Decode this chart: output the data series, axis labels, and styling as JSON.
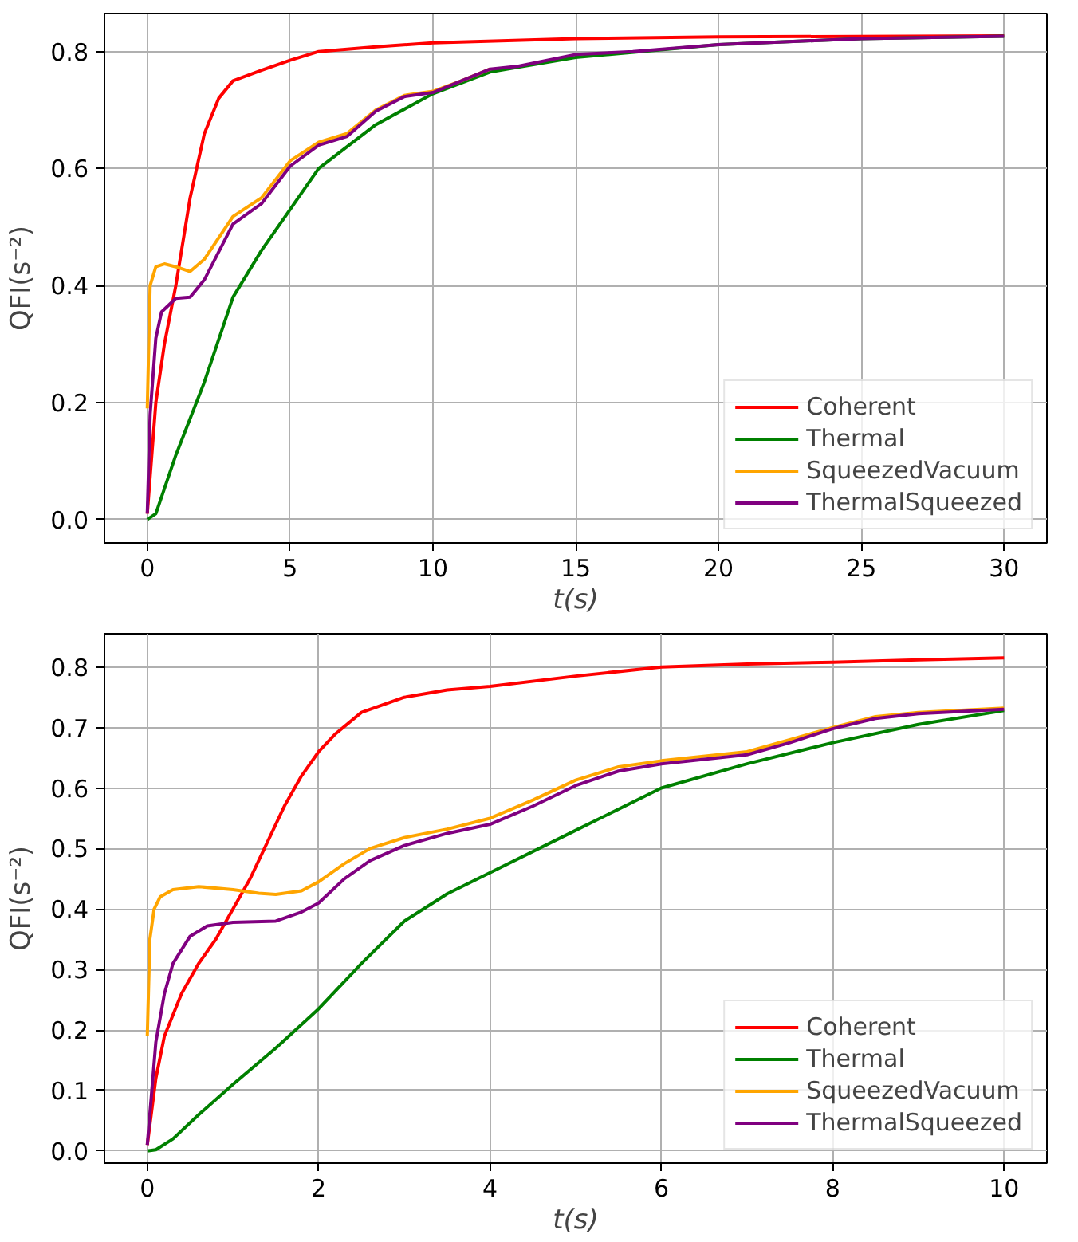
{
  "chart_data": [
    {
      "type": "line",
      "xlabel": "t(s)",
      "ylabel": "QFI(s⁻²)",
      "xlim": [
        -1.5,
        31.5
      ],
      "ylim": [
        -0.04,
        0.865
      ],
      "xticks": [
        0,
        5,
        10,
        15,
        20,
        25,
        30
      ],
      "yticks": [
        {
          "value": 0,
          "label": "0.0"
        },
        {
          "value": 0.2,
          "label": "0.2"
        },
        {
          "value": 0.4,
          "label": "0.4"
        },
        {
          "value": 0.6,
          "label": "0.6"
        },
        {
          "value": 0.8,
          "label": "0.8"
        }
      ],
      "grid": true,
      "legend": "bottom right",
      "line_style": "solid",
      "series": [
        {
          "name": "Coherent",
          "color": "#ff0000",
          "x": [
            0,
            0.3,
            0.6,
            1,
            1.5,
            2,
            2.5,
            3,
            4,
            5,
            6,
            8,
            10,
            15,
            20,
            30
          ],
          "values": [
            0.01,
            0.2,
            0.3,
            0.4,
            0.55,
            0.66,
            0.72,
            0.75,
            0.768,
            0.785,
            0.8,
            0.808,
            0.815,
            0.822,
            0.825,
            0.827
          ]
        },
        {
          "name": "Thermal",
          "color": "#008000",
          "x": [
            0,
            0.3,
            1,
            2,
            3,
            4,
            5,
            6,
            8,
            10,
            12,
            15,
            20,
            25,
            30
          ],
          "values": [
            0,
            0.01,
            0.11,
            0.235,
            0.38,
            0.46,
            0.53,
            0.6,
            0.675,
            0.728,
            0.765,
            0.79,
            0.812,
            0.822,
            0.826
          ]
        },
        {
          "name": "SqueezedVacuum",
          "color": "#ffa500",
          "x": [
            0,
            0.1,
            0.3,
            0.6,
            1,
            1.5,
            2,
            3,
            4,
            5,
            6,
            7,
            8,
            9,
            10,
            11,
            12
          ],
          "values": [
            0.19,
            0.4,
            0.432,
            0.437,
            0.432,
            0.424,
            0.445,
            0.518,
            0.55,
            0.613,
            0.645,
            0.66,
            0.7,
            0.725,
            0.732,
            0.75,
            0.77
          ]
        },
        {
          "name": "ThermalSqueezed",
          "color": "#800080",
          "x": [
            0,
            0.1,
            0.3,
            0.5,
            1,
            1.5,
            2,
            3,
            4,
            5,
            6,
            7,
            8,
            9,
            10,
            11,
            12,
            13,
            15,
            17,
            20,
            25,
            30
          ],
          "values": [
            0.01,
            0.18,
            0.31,
            0.355,
            0.378,
            0.38,
            0.41,
            0.505,
            0.54,
            0.604,
            0.64,
            0.655,
            0.698,
            0.723,
            0.73,
            0.75,
            0.77,
            0.775,
            0.795,
            0.8,
            0.812,
            0.822,
            0.826
          ]
        }
      ]
    },
    {
      "type": "line",
      "xlabel": "t(s)",
      "ylabel": "QFI(s⁻²)",
      "xlim": [
        -0.5,
        10.5
      ],
      "ylim": [
        -0.02,
        0.855
      ],
      "xticks": [
        0,
        2,
        4,
        6,
        8,
        10
      ],
      "yticks": [
        {
          "value": 0,
          "label": "0.0"
        },
        0.1,
        0.2,
        0.3,
        0.4,
        0.5,
        0.6,
        0.7,
        0.8
      ],
      "grid": true,
      "legend": "bottom right",
      "line_style": "solid",
      "series": [
        {
          "name": "Coherent",
          "color": "#ff0000",
          "x": [
            0,
            0.1,
            0.2,
            0.4,
            0.6,
            0.8,
            1,
            1.2,
            1.4,
            1.6,
            1.8,
            2,
            2.2,
            2.5,
            3,
            3.5,
            4,
            5,
            6,
            7,
            8,
            9,
            10
          ],
          "values": [
            0.01,
            0.12,
            0.19,
            0.26,
            0.31,
            0.35,
            0.4,
            0.45,
            0.51,
            0.57,
            0.62,
            0.66,
            0.69,
            0.725,
            0.75,
            0.762,
            0.768,
            0.785,
            0.8,
            0.805,
            0.808,
            0.812,
            0.815
          ]
        },
        {
          "name": "Thermal",
          "color": "#008000",
          "x": [
            0,
            0.1,
            0.3,
            0.6,
            1,
            1.5,
            2,
            2.5,
            3,
            3.5,
            4,
            5,
            6,
            7,
            8,
            9,
            10
          ],
          "values": [
            0,
            0.002,
            0.02,
            0.06,
            0.11,
            0.17,
            0.235,
            0.31,
            0.38,
            0.425,
            0.46,
            0.53,
            0.6,
            0.64,
            0.675,
            0.705,
            0.728
          ]
        },
        {
          "name": "SqueezedVacuum",
          "color": "#ffa500",
          "x": [
            0,
            0.03,
            0.08,
            0.15,
            0.3,
            0.6,
            1,
            1.3,
            1.5,
            1.8,
            2,
            2.3,
            2.6,
            3,
            3.5,
            4,
            4.5,
            5,
            5.5,
            6,
            7,
            7.5,
            8,
            8.5,
            9,
            10
          ],
          "values": [
            0.19,
            0.35,
            0.4,
            0.42,
            0.432,
            0.437,
            0.432,
            0.426,
            0.424,
            0.43,
            0.445,
            0.475,
            0.5,
            0.518,
            0.532,
            0.55,
            0.58,
            0.613,
            0.635,
            0.645,
            0.66,
            0.68,
            0.7,
            0.718,
            0.725,
            0.732
          ]
        },
        {
          "name": "ThermalSqueezed",
          "color": "#800080",
          "x": [
            0,
            0.1,
            0.2,
            0.3,
            0.5,
            0.7,
            1,
            1.5,
            1.8,
            2,
            2.3,
            2.6,
            3,
            3.5,
            4,
            4.5,
            5,
            5.5,
            6,
            7,
            7.5,
            8,
            8.5,
            9,
            10
          ],
          "values": [
            0.01,
            0.18,
            0.26,
            0.31,
            0.355,
            0.372,
            0.378,
            0.38,
            0.395,
            0.41,
            0.45,
            0.48,
            0.505,
            0.525,
            0.54,
            0.57,
            0.604,
            0.628,
            0.64,
            0.655,
            0.675,
            0.698,
            0.715,
            0.723,
            0.73
          ]
        }
      ]
    }
  ]
}
